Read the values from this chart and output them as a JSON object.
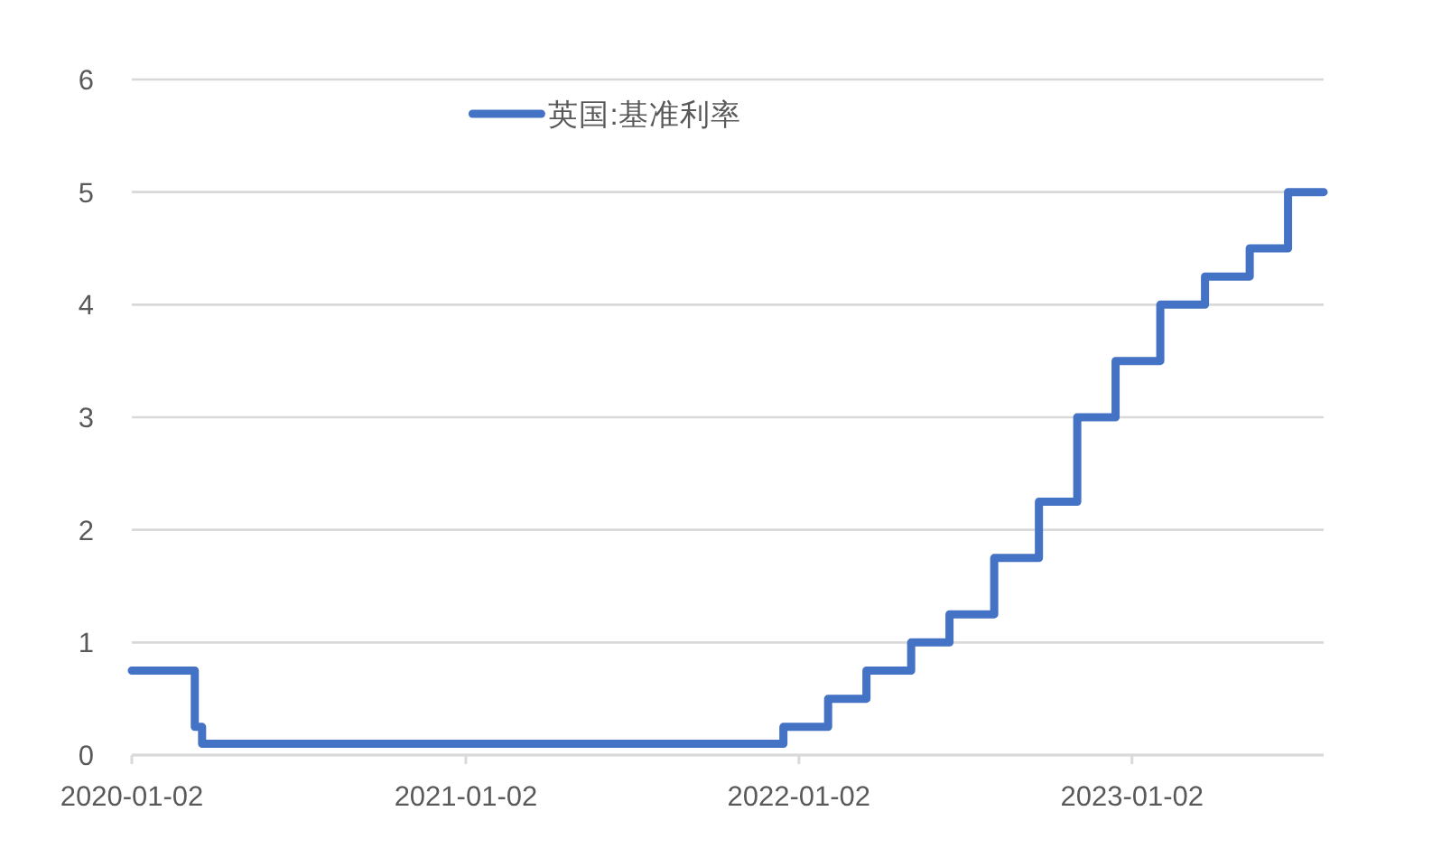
{
  "chart_data": {
    "type": "step",
    "x": [
      "2020-01-02",
      "2020-03-11",
      "2020-03-19",
      "2021-12-16",
      "2022-02-03",
      "2022-03-17",
      "2022-05-05",
      "2022-06-16",
      "2022-08-04",
      "2022-09-22",
      "2022-11-03",
      "2022-12-15",
      "2023-02-02",
      "2023-03-23",
      "2023-05-11",
      "2023-06-22",
      "2023-07-31"
    ],
    "series": [
      {
        "name": "英国:基准利率",
        "color": "#4472c4",
        "values": [
          0.75,
          0.25,
          0.1,
          0.25,
          0.5,
          0.75,
          1.0,
          1.25,
          1.75,
          2.25,
          3.0,
          3.5,
          4.0,
          4.25,
          4.5,
          5.0,
          5.0
        ]
      }
    ],
    "xlim": [
      "2020-01-02",
      "2023-07-31"
    ],
    "xticks": [
      "2020-01-02",
      "2021-01-02",
      "2022-01-02",
      "2023-01-02"
    ],
    "ylim": [
      0,
      6
    ],
    "yticks": [
      0,
      1,
      2,
      3,
      4,
      5,
      6
    ],
    "grid": "y",
    "legend": "top"
  }
}
